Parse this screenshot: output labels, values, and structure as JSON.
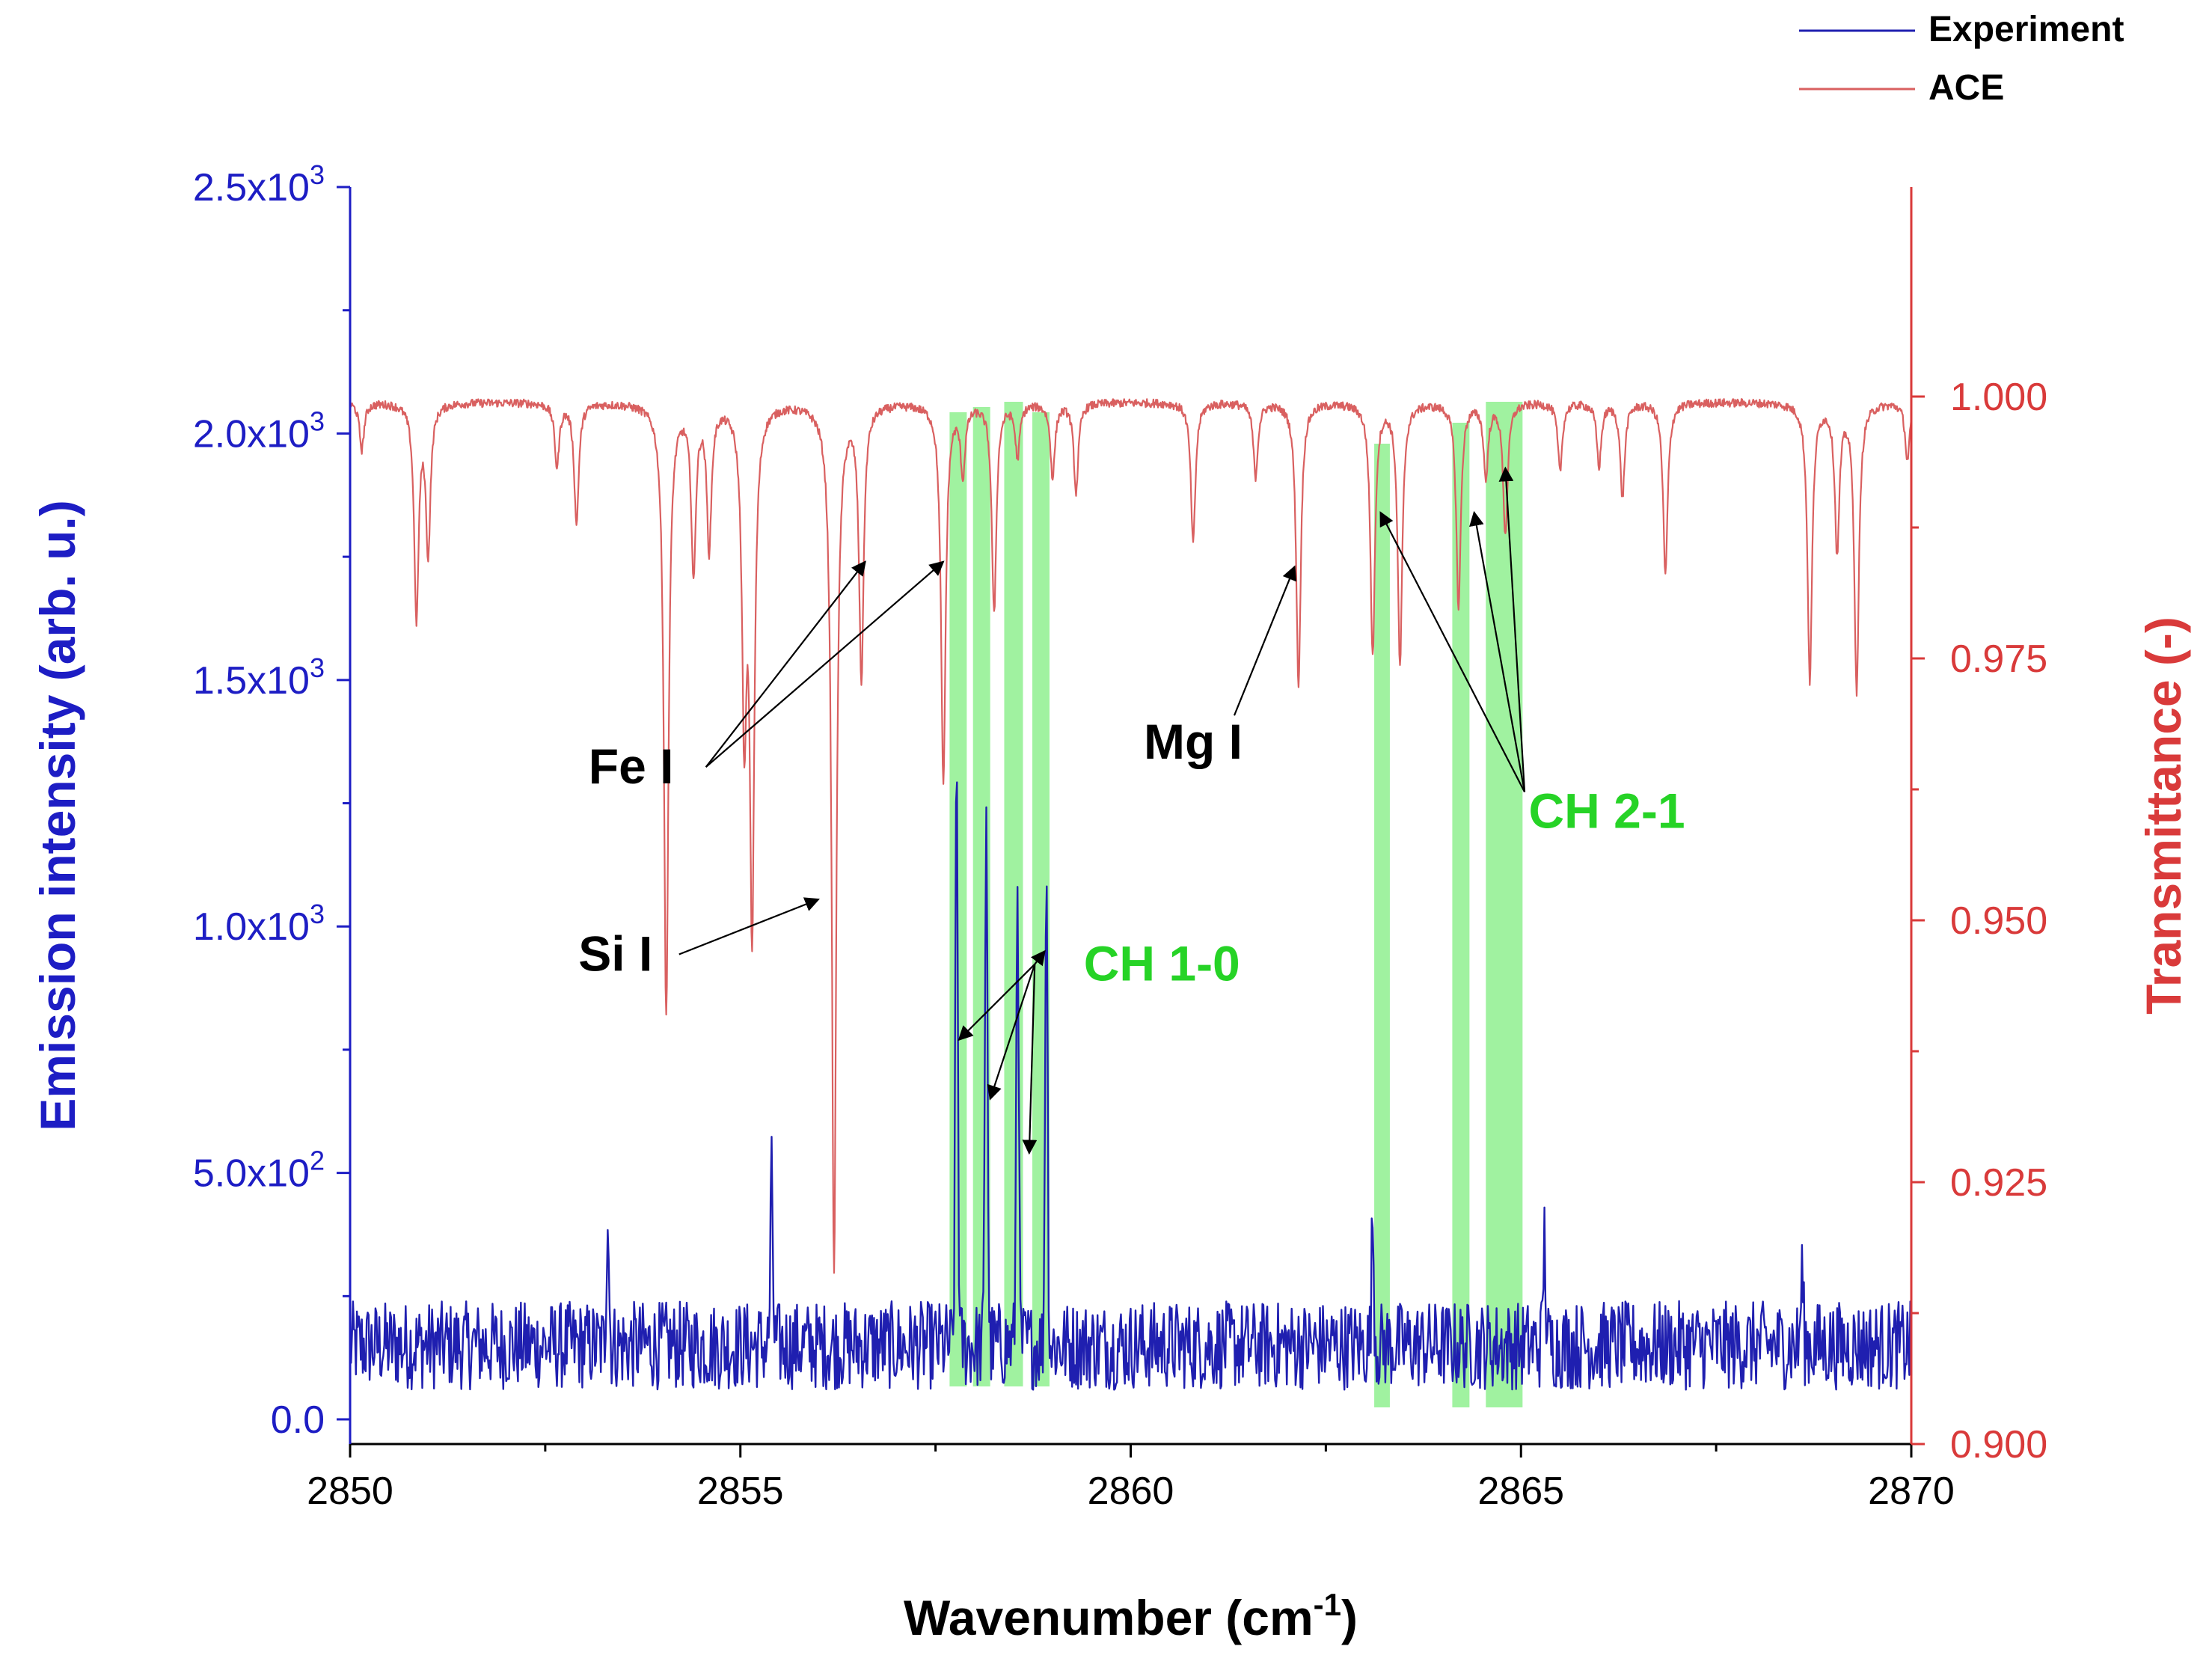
{
  "chart_data": {
    "type": "line",
    "x_axis": {
      "title": "Wavenumber (cm",
      "title_sup": "-1",
      "title_end": ")",
      "range": [
        2850,
        2870
      ],
      "ticks": [
        2850,
        2855,
        2860,
        2865,
        2870
      ],
      "tick_labels": [
        "2850",
        "2855",
        "2860",
        "2865",
        "2870"
      ]
    },
    "y_left": {
      "title": "Emission intensity (arb. u.)",
      "range": [
        -50,
        2500
      ],
      "ticks": [
        0,
        500,
        1000,
        1500,
        2000,
        2500
      ],
      "tick_labels": [
        {
          "base": "0.0",
          "exp": ""
        },
        {
          "base": "5.0x10",
          "exp": "2"
        },
        {
          "base": "1.0x10",
          "exp": "3"
        },
        {
          "base": "1.5x10",
          "exp": "3"
        },
        {
          "base": "2.0x10",
          "exp": "3"
        },
        {
          "base": "2.5x10",
          "exp": "3"
        }
      ],
      "color": "#1d1dc4"
    },
    "y_right": {
      "title": "Transmittance (-)",
      "range": [
        0.9,
        1.02
      ],
      "ticks": [
        0.9,
        0.925,
        0.95,
        0.975,
        1.0
      ],
      "tick_labels": [
        "0.900",
        "0.925",
        "0.950",
        "0.975",
        "1.000"
      ],
      "color": "#d93a3a"
    },
    "legend": {
      "position": "top-right",
      "entries": [
        {
          "label": "Experiment",
          "color": "#1f1fb0"
        },
        {
          "label": "ACE",
          "color": "#d96060"
        }
      ]
    },
    "series": [
      {
        "name": "Experiment",
        "axis": "left",
        "color": "#1f1fb0",
        "baseline": 150,
        "noise_amplitude": 90,
        "peaks": [
          {
            "x": 2855.4,
            "y": 490
          },
          {
            "x": 2853.3,
            "y": 430
          },
          {
            "x": 2857.77,
            "y": 1360
          },
          {
            "x": 2858.15,
            "y": 1270
          },
          {
            "x": 2858.55,
            "y": 1130
          },
          {
            "x": 2858.92,
            "y": 1150
          },
          {
            "x": 2863.1,
            "y": 400
          },
          {
            "x": 2865.3,
            "y": 370
          },
          {
            "x": 2868.6,
            "y": 300
          }
        ]
      },
      {
        "name": "ACE",
        "axis": "right",
        "color": "#d96060",
        "continuum": 0.9995,
        "absorption_lines": [
          {
            "x": 2850.15,
            "depth": 0.0045
          },
          {
            "x": 2850.85,
            "depth": 0.0205
          },
          {
            "x": 2851.0,
            "depth": 0.014
          },
          {
            "x": 2852.65,
            "depth": 0.006
          },
          {
            "x": 2852.9,
            "depth": 0.0115
          },
          {
            "x": 2854.05,
            "depth": 0.0585
          },
          {
            "x": 2854.4,
            "depth": 0.016
          },
          {
            "x": 2854.6,
            "depth": 0.0135
          },
          {
            "x": 2855.05,
            "depth": 0.0295
          },
          {
            "x": 2855.15,
            "depth": 0.049
          },
          {
            "x": 2856.2,
            "depth": 0.083
          },
          {
            "x": 2856.55,
            "depth": 0.026
          },
          {
            "x": 2857.6,
            "depth": 0.0365
          },
          {
            "x": 2857.85,
            "depth": 0.0065
          },
          {
            "x": 2858.25,
            "depth": 0.02
          },
          {
            "x": 2858.55,
            "depth": 0.005
          },
          {
            "x": 2859.0,
            "depth": 0.007
          },
          {
            "x": 2859.3,
            "depth": 0.0085
          },
          {
            "x": 2860.8,
            "depth": 0.0135
          },
          {
            "x": 2861.6,
            "depth": 0.007
          },
          {
            "x": 2862.15,
            "depth": 0.027
          },
          {
            "x": 2863.1,
            "depth": 0.024
          },
          {
            "x": 2863.45,
            "depth": 0.025
          },
          {
            "x": 2864.2,
            "depth": 0.0195
          },
          {
            "x": 2864.55,
            "depth": 0.007
          },
          {
            "x": 2864.8,
            "depth": 0.0125
          },
          {
            "x": 2865.5,
            "depth": 0.0065
          },
          {
            "x": 2866.0,
            "depth": 0.006
          },
          {
            "x": 2866.3,
            "depth": 0.009
          },
          {
            "x": 2866.85,
            "depth": 0.0165
          },
          {
            "x": 2868.7,
            "depth": 0.0265
          },
          {
            "x": 2869.05,
            "depth": 0.014
          },
          {
            "x": 2869.3,
            "depth": 0.0275
          },
          {
            "x": 2869.95,
            "depth": 0.0055
          }
        ]
      }
    ],
    "highlight_bands": [
      {
        "x0": 2857.68,
        "x1": 2857.9,
        "y0": 0.9055,
        "y1": 0.9985
      },
      {
        "x0": 2857.98,
        "x1": 2858.2,
        "y0": 0.9055,
        "y1": 0.999
      },
      {
        "x0": 2858.38,
        "x1": 2858.62,
        "y0": 0.9055,
        "y1": 0.9995
      },
      {
        "x0": 2858.74,
        "x1": 2858.96,
        "y0": 0.9055,
        "y1": 0.9985
      },
      {
        "x0": 2863.12,
        "x1": 2863.32,
        "y0": 0.9035,
        "y1": 0.9955
      },
      {
        "x0": 2864.12,
        "x1": 2864.34,
        "y0": 0.9035,
        "y1": 0.9975
      },
      {
        "x0": 2864.55,
        "x1": 2865.02,
        "y0": 0.9035,
        "y1": 0.9995
      }
    ],
    "band_color": "#8ff08f",
    "annotations": [
      {
        "id": "fe",
        "text": "Fe I",
        "color": "#000000",
        "x": 2853.6,
        "y": 1290,
        "targets": [
          {
            "x": 2856.6,
            "y": 1740
          },
          {
            "x": 2857.6,
            "y": 1740
          }
        ]
      },
      {
        "id": "si",
        "text": "Si I",
        "color": "#000000",
        "x": 2853.4,
        "y": 910,
        "targets": [
          {
            "x": 2856.0,
            "y": 1055
          }
        ]
      },
      {
        "id": "mg",
        "text": "Mg I",
        "color": "#000000",
        "x": 2860.8,
        "y": 1340,
        "targets": [
          {
            "x": 2862.1,
            "y": 1730
          }
        ]
      },
      {
        "id": "ch10",
        "text": "CH 1-0",
        "color": "#26d326",
        "x": 2860.4,
        "y": 890,
        "targets": [
          {
            "x": 2857.8,
            "y": 770
          },
          {
            "x": 2858.2,
            "y": 650
          },
          {
            "x": 2858.7,
            "y": 540
          },
          {
            "x": 2858.9,
            "y": 950
          }
        ]
      },
      {
        "id": "ch21",
        "text": "CH 2-1",
        "color": "#26d326",
        "x": 2866.1,
        "y": 1200,
        "targets": [
          {
            "x": 2863.2,
            "y": 1840
          },
          {
            "x": 2864.4,
            "y": 1840
          },
          {
            "x": 2864.8,
            "y": 1930
          }
        ]
      }
    ]
  }
}
